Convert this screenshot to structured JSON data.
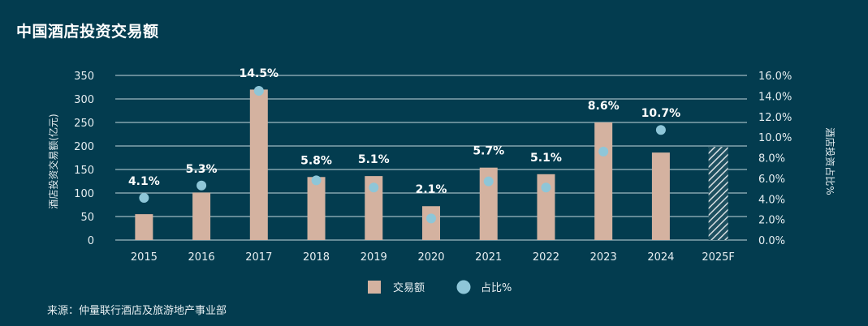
{
  "title": "中国酒店投资交易额",
  "source": "来源：仲量联行酒店及旅游地产事业部",
  "colors": {
    "background": "#033c4f",
    "bar": "#d4b2a0",
    "dot": "#8ec6d8",
    "grid": "#9fb8c0",
    "text": "#e6eef1"
  },
  "chart_data": {
    "type": "bar",
    "categories": [
      "2015",
      "2016",
      "2017",
      "2018",
      "2019",
      "2020",
      "2021",
      "2022",
      "2023",
      "2024",
      "2025F"
    ],
    "series": [
      {
        "name": "交易额",
        "axis": "left",
        "values": [
          55,
          101,
          320,
          134,
          136,
          72,
          154,
          140,
          250,
          186,
          198
        ],
        "forecast_index": 10
      },
      {
        "name": "占比%",
        "axis": "right",
        "type": "scatter",
        "values": [
          4.1,
          5.3,
          14.5,
          5.8,
          5.1,
          2.1,
          5.7,
          5.1,
          8.6,
          10.7,
          null
        ],
        "labels": [
          "4.1%",
          "5.3%",
          "14.5%",
          "5.8%",
          "5.1%",
          "2.1%",
          "5.7%",
          "5.1%",
          "8.6%",
          "10.7%",
          ""
        ]
      }
    ],
    "ylabel": "酒店投资交易额(亿元)",
    "y2label": "酒店投资占比%",
    "ylim": [
      0,
      350
    ],
    "y2lim": [
      0,
      16
    ],
    "yticks": [
      "0",
      "50",
      "100",
      "150",
      "200",
      "250",
      "300",
      "350"
    ],
    "y2ticks": [
      "0.0%",
      "2.0%",
      "4.0%",
      "6.0%",
      "8.0%",
      "10.0%",
      "12.0%",
      "14.0%",
      "16.0%"
    ],
    "grid": true,
    "legend_position": "bottom"
  }
}
